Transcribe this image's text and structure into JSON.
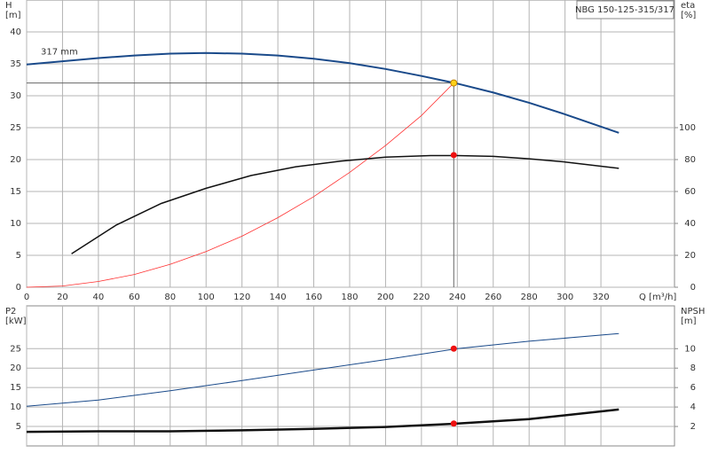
{
  "chart_data": [
    {
      "type": "line",
      "title": "NBG 150-125-315/317",
      "ylabel": "H",
      "yunit": "[m]",
      "y2label": "eta",
      "y2unit": "[%]",
      "xlabel": "Q [m³/h]",
      "xlim": [
        0,
        361
      ],
      "xticks": [
        0,
        20,
        40,
        60,
        80,
        100,
        120,
        140,
        160,
        180,
        200,
        220,
        240,
        260,
        280,
        300,
        320
      ],
      "ylim": [
        0,
        45
      ],
      "yticks": [
        0,
        5,
        10,
        15,
        20,
        25,
        30,
        35,
        40
      ],
      "y2lim": [
        0,
        180
      ],
      "y2ticks": [
        0,
        20,
        40,
        60,
        80,
        100
      ],
      "grid": true,
      "series": [
        {
          "name": "317 mm",
          "color": "#1a4a8a",
          "width": 2,
          "x": [
            0,
            20,
            40,
            60,
            80,
            100,
            120,
            140,
            160,
            180,
            200,
            220,
            240,
            260,
            280,
            300,
            330
          ],
          "values": [
            34.9,
            35.4,
            35.9,
            36.3,
            36.6,
            36.7,
            36.6,
            36.3,
            35.8,
            35.1,
            34.2,
            33.1,
            31.9,
            30.5,
            28.9,
            27.1,
            24.2
          ]
        },
        {
          "color": "#ff3030",
          "width": 0.8,
          "x": [
            0,
            20,
            40,
            60,
            80,
            100,
            120,
            140,
            160,
            180,
            200,
            220,
            238
          ],
          "values": [
            0,
            0.2,
            0.9,
            2,
            3.6,
            5.6,
            8,
            10.9,
            14.2,
            18,
            22.2,
            26.9,
            32
          ]
        },
        {
          "color": "#111111",
          "width": 1.5,
          "axis": "y2",
          "x": [
            25,
            50,
            75,
            100,
            125,
            150,
            175,
            200,
            225,
            240,
            260,
            280,
            300,
            330
          ],
          "values": [
            21,
            39,
            52.5,
            62,
            70,
            75.5,
            79,
            81.5,
            82.5,
            82.5,
            82,
            80.5,
            78.5,
            74.5
          ]
        }
      ],
      "points": [
        {
          "x": 238,
          "y": 32,
          "color": "#ffd21a",
          "guides": true
        },
        {
          "x": 238,
          "y": 82.8,
          "axis": "y2",
          "color": "#ee1111"
        }
      ]
    },
    {
      "type": "line",
      "ylabel": "P2",
      "yunit": "[kW]",
      "y2label": "NPSH",
      "y2unit": "[m]",
      "xlim": [
        0,
        361
      ],
      "xticks": [
        0,
        20,
        40,
        60,
        80,
        100,
        120,
        140,
        160,
        180,
        200,
        220,
        240,
        260,
        280,
        300,
        320
      ],
      "ylim": [
        0,
        36
      ],
      "yticks": [
        5,
        10,
        15,
        20,
        25
      ],
      "y2lim": [
        0,
        14.4
      ],
      "y2ticks": [
        2,
        4,
        6,
        8,
        10
      ],
      "grid": true,
      "series": [
        {
          "color": "#1a4a8a",
          "width": 1,
          "x": [
            0,
            40,
            80,
            120,
            160,
            200,
            240,
            280,
            330
          ],
          "values": [
            10.2,
            11.8,
            14.2,
            16.8,
            19.5,
            22.2,
            25,
            26.9,
            28.9
          ]
        },
        {
          "color": "#111111",
          "width": 2.5,
          "axis": "y2",
          "x": [
            0,
            40,
            80,
            120,
            160,
            200,
            240,
            280,
            330
          ],
          "values": [
            1.45,
            1.5,
            1.5,
            1.6,
            1.75,
            1.95,
            2.3,
            2.75,
            3.75
          ]
        }
      ],
      "points": [
        {
          "x": 238,
          "y": 25,
          "color": "#ee1111"
        },
        {
          "x": 238,
          "y": 2.3,
          "axis": "y2",
          "color": "#ee1111"
        }
      ]
    }
  ]
}
